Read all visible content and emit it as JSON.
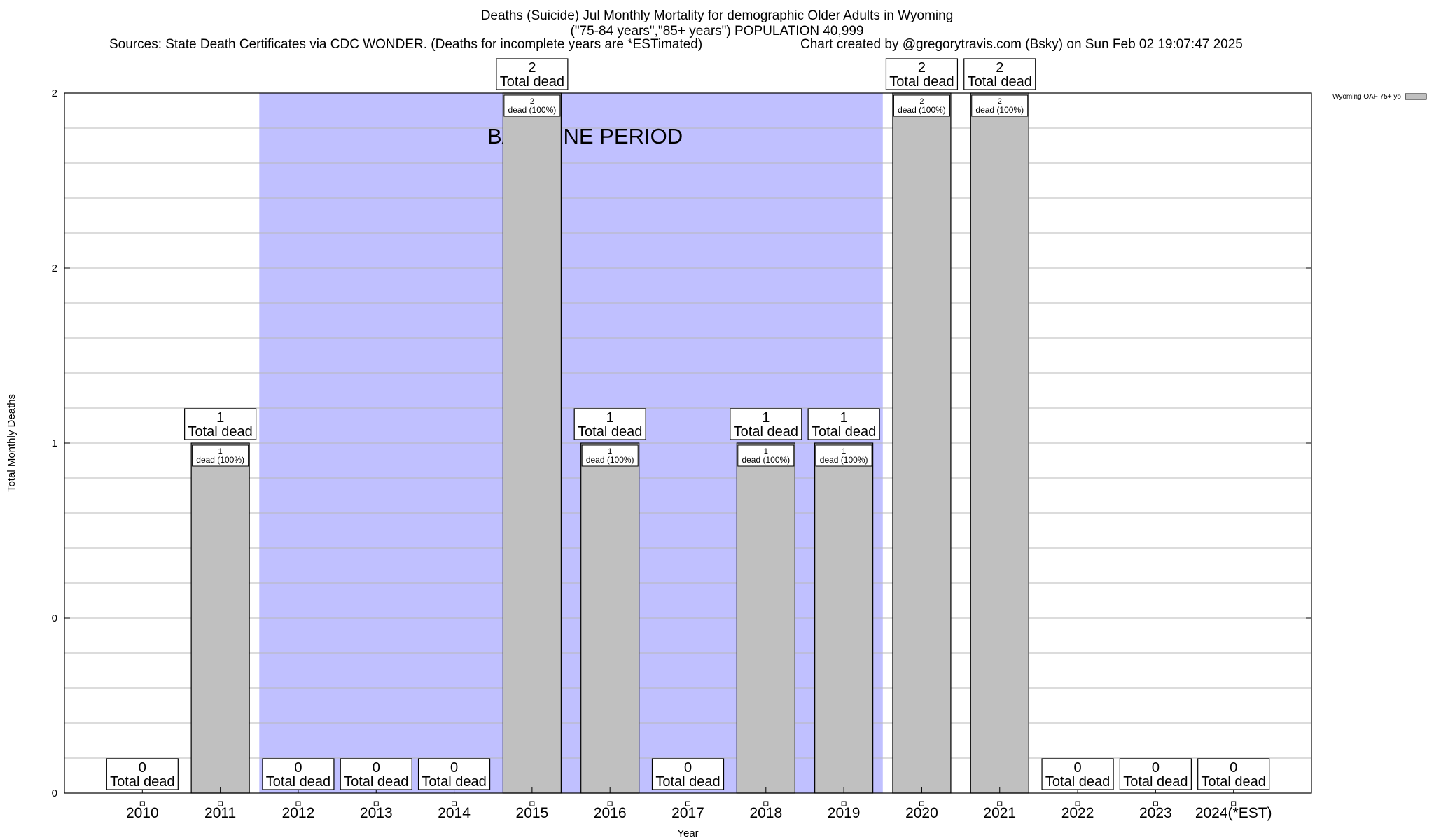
{
  "title": {
    "line1": "Deaths (Suicide) Jul Monthly Mortality for demographic Older Adults in Wyoming",
    "line2": "(\"75-84 years\",\"85+ years\") POPULATION 40,999",
    "sources": "Sources: State Death Certificates via CDC WONDER. (Deaths for incomplete years are *ESTimated)",
    "credit": "Chart created by @gregorytravis.com (Bsky) on Sun Feb 02 19:07:47 2025"
  },
  "chart_data": {
    "type": "bar",
    "categories": [
      "2010",
      "2011",
      "2012",
      "2013",
      "2014",
      "2015",
      "2016",
      "2017",
      "2018",
      "2019",
      "2020",
      "2021",
      "2022",
      "2023",
      "2024(*EST)"
    ],
    "series": [
      {
        "name": "Wyoming OAF 75+ yo",
        "values": [
          0,
          1,
          0,
          0,
          0,
          2,
          1,
          0,
          1,
          1,
          2,
          2,
          0,
          0,
          0
        ],
        "color": "#c0c0c0"
      }
    ],
    "total_label_suffix": "Total dead",
    "inner_label_suffix": "dead (100%)",
    "xlabel": "Year",
    "ylabel": "Total Monthly Deaths",
    "ylim": [
      0,
      2
    ],
    "yticks": [
      {
        "value": 0,
        "label": "0"
      },
      {
        "value": 0.5,
        "label": "0"
      },
      {
        "value": 1,
        "label": "1"
      },
      {
        "value": 1.5,
        "label": "2"
      },
      {
        "value": 2,
        "label": "2"
      }
    ],
    "baseline_period": {
      "label": "BASELINE PERIOD",
      "start": "2012",
      "end": "2019",
      "color": "#c0c0ff"
    },
    "grid": true,
    "legend_position": "top-right"
  }
}
